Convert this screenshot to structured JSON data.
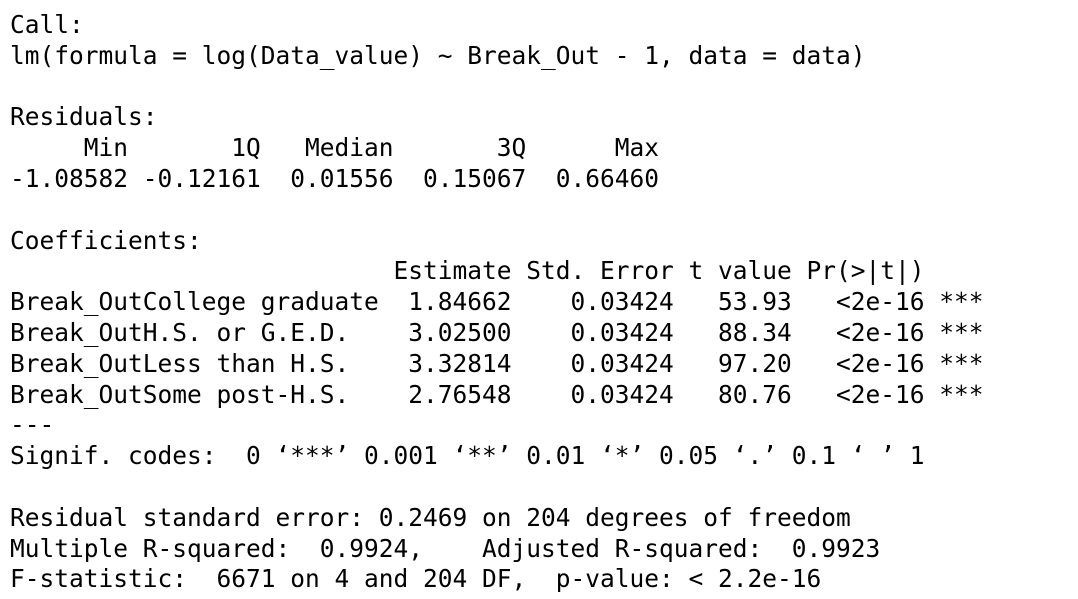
{
  "output": {
    "lines": [
      "Call:",
      "lm(formula = log(Data_value) ~ Break_Out - 1, data = data)",
      "",
      "Residuals:",
      "     Min       1Q   Median       3Q      Max ",
      "-1.08582 -0.12161  0.01556  0.15067  0.66460 ",
      "",
      "Coefficients:",
      "                          Estimate Std. Error t value Pr(>|t|)    ",
      "Break_OutCollege graduate  1.84662    0.03424   53.93   <2e-16 ***",
      "Break_OutH.S. or G.E.D.    3.02500    0.03424   88.34   <2e-16 ***",
      "Break_OutLess than H.S.    3.32814    0.03424   97.20   <2e-16 ***",
      "Break_OutSome post-H.S.    2.76548    0.03424   80.76   <2e-16 ***",
      "---",
      "Signif. codes:  0 ‘***’ 0.001 ‘**’ 0.01 ‘*’ 0.05 ‘.’ 0.1 ‘ ’ 1",
      "",
      "Residual standard error: 0.2469 on 204 degrees of freedom",
      "Multiple R-squared:  0.9924,\tAdjusted R-squared:  0.9923 ",
      "F-statistic:  6671 on 4 and 204 DF,  p-value: < 2.2e-16"
    ]
  }
}
